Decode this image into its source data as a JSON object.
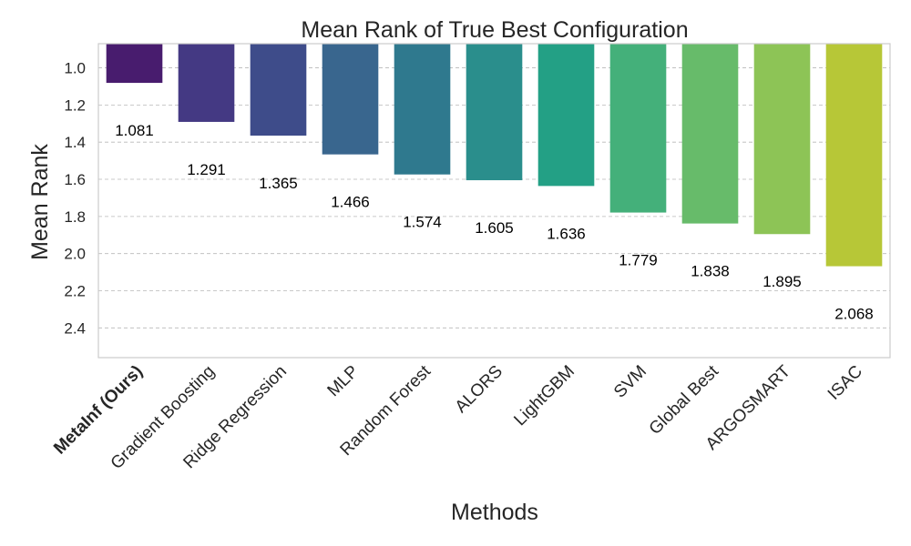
{
  "chart_data": {
    "type": "bar",
    "title": "Mean Rank of True Best Configuration",
    "xlabel": "Methods",
    "ylabel": "Mean Rank",
    "y_inverted": true,
    "ylim": [
      0.87,
      2.56
    ],
    "yticks": [
      "1.0",
      "1.2",
      "1.4",
      "1.6",
      "1.8",
      "2.0",
      "2.2",
      "2.4"
    ],
    "grid": "horizontal-dashed",
    "categories": [
      "MetaInf (Ours)",
      "Gradient Boosting",
      "Ridge Regression",
      "MLP",
      "Random Forest",
      "ALORS",
      "LightGBM",
      "SVM",
      "Global Best",
      "ARGOSMART",
      "ISAC"
    ],
    "highlighted_category": "MetaInf (Ours)",
    "values": [
      1.081,
      1.291,
      1.365,
      1.466,
      1.574,
      1.605,
      1.636,
      1.779,
      1.838,
      1.895,
      2.068
    ],
    "value_labels": [
      "1.081",
      "1.291",
      "1.365",
      "1.466",
      "1.574",
      "1.605",
      "1.636",
      "1.779",
      "1.838",
      "1.895",
      "2.068"
    ],
    "colors": [
      "#481c6e",
      "#443983",
      "#3e4c8a",
      "#39668e",
      "#2f798e",
      "#2a8e8c",
      "#23a085",
      "#44b07a",
      "#67bb6a",
      "#8dc456",
      "#b7c737"
    ],
    "frame_color": "#cccccc"
  }
}
